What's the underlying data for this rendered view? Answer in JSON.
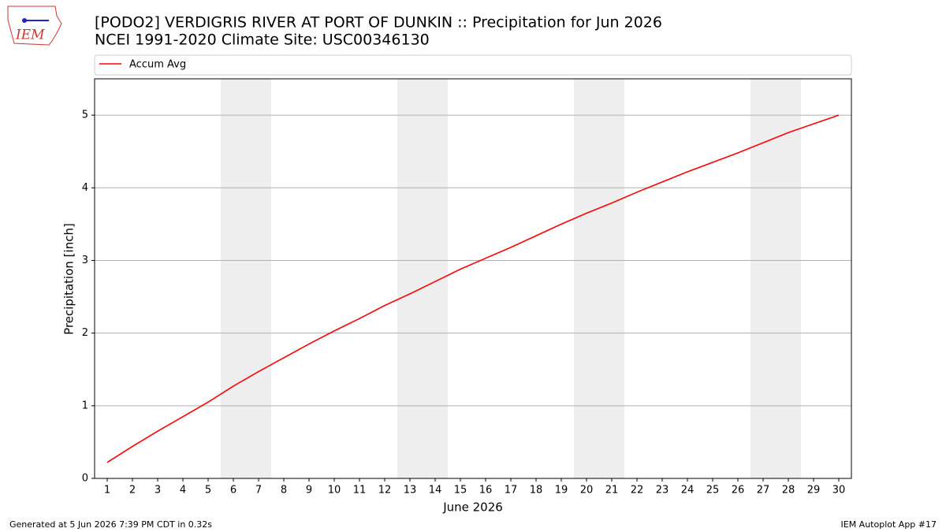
{
  "logo": "IEM",
  "footer": {
    "left": "Generated at 5 Jun 2026 7:39 PM CDT in 0.32s",
    "right": "IEM Autoplot App #17"
  },
  "chart_data": {
    "type": "line",
    "title": "[PODO2] VERDIGRIS RIVER  AT PORT OF DUNKIN :: Precipitation for Jun 2026",
    "subtitle": "NCEI 1991-2020 Climate Site: USC00346130",
    "x_label": "June 2026",
    "y_label": "Precipitation [inch]",
    "x": [
      1,
      2,
      3,
      4,
      5,
      6,
      7,
      8,
      9,
      10,
      11,
      12,
      13,
      14,
      15,
      16,
      17,
      18,
      19,
      20,
      21,
      22,
      23,
      24,
      25,
      26,
      27,
      28,
      29,
      30
    ],
    "series": [
      {
        "name": "Accum Avg",
        "color": "#ff0000",
        "values": [
          0.22,
          0.44,
          0.65,
          0.85,
          1.05,
          1.27,
          1.47,
          1.66,
          1.85,
          2.03,
          2.2,
          2.38,
          2.54,
          2.71,
          2.88,
          3.03,
          3.18,
          3.34,
          3.5,
          3.65,
          3.79,
          3.94,
          4.08,
          4.22,
          4.35,
          4.48,
          4.62,
          4.76,
          4.88,
          5.0
        ]
      }
    ],
    "shaded_ranges": [
      [
        5.5,
        7.5
      ],
      [
        12.5,
        14.5
      ],
      [
        19.5,
        21.5
      ],
      [
        26.5,
        28.5
      ]
    ],
    "shade_color": "#eeeeee",
    "xlim": [
      0.5,
      30.5
    ],
    "ylim": [
      0,
      5.5
    ],
    "xticks": [
      1,
      2,
      3,
      4,
      5,
      6,
      7,
      8,
      9,
      10,
      11,
      12,
      13,
      14,
      15,
      16,
      17,
      18,
      19,
      20,
      21,
      22,
      23,
      24,
      25,
      26,
      27,
      28,
      29,
      30
    ],
    "yticks": [
      0,
      1,
      2,
      3,
      4,
      5
    ],
    "grid": true,
    "legend": "top"
  }
}
